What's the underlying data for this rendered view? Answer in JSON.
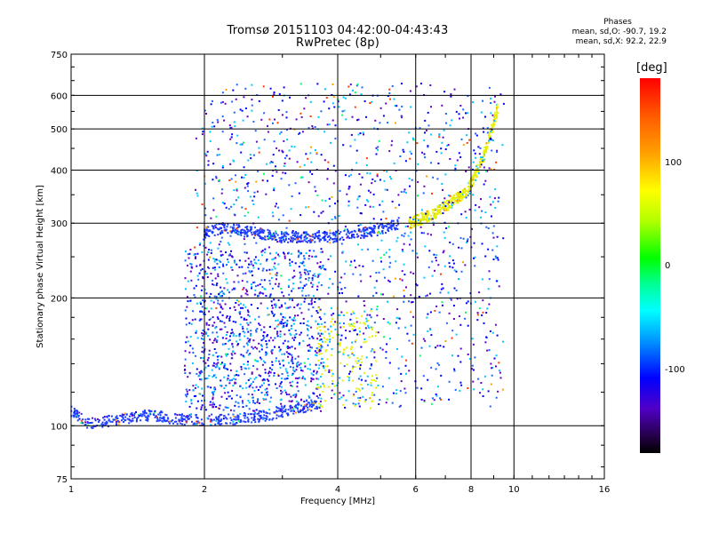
{
  "title_line1": "Tromsø 20151103 04:42:00-04:43:43",
  "title_line2": "RwPretec (8p)",
  "phases": {
    "header": "Phases",
    "line_o": "mean, sd,O: -90.7, 19.2",
    "line_x": "mean, sd,X:  92.2, 22.9"
  },
  "colorbar": {
    "title": "[deg]",
    "labels": [
      "100",
      "0",
      "-100"
    ],
    "range": [
      -180,
      180
    ]
  },
  "chart_data": {
    "type": "scatter",
    "xlabel": "Frequency [MHz]",
    "ylabel": "Stationary phase Virtual Height [km]",
    "xscale": "log",
    "yscale": "log",
    "xlim": [
      1,
      16
    ],
    "ylim": [
      75,
      750
    ],
    "xticks": [
      1,
      2,
      4,
      6,
      8,
      10,
      16
    ],
    "yticks": [
      75,
      100,
      200,
      300,
      400,
      500,
      600,
      750
    ],
    "xgrid": [
      2,
      4,
      6,
      8,
      10
    ],
    "ygrid": [
      100,
      200,
      300,
      400,
      500,
      600
    ],
    "grid": true,
    "ordinary_trace": [
      {
        "x": 1.0,
        "y": 108
      },
      {
        "x": 1.1,
        "y": 101
      },
      {
        "x": 1.3,
        "y": 104
      },
      {
        "x": 1.5,
        "y": 106
      },
      {
        "x": 1.7,
        "y": 104
      },
      {
        "x": 2.0,
        "y": 103
      },
      {
        "x": 2.4,
        "y": 104
      },
      {
        "x": 2.8,
        "y": 106
      },
      {
        "x": 3.2,
        "y": 110
      },
      {
        "x": 3.6,
        "y": 112
      },
      {
        "x": 2.0,
        "y": 285
      },
      {
        "x": 2.2,
        "y": 292
      },
      {
        "x": 2.6,
        "y": 285
      },
      {
        "x": 3.0,
        "y": 278
      },
      {
        "x": 3.5,
        "y": 278
      },
      {
        "x": 4.0,
        "y": 280
      },
      {
        "x": 4.5,
        "y": 285
      },
      {
        "x": 5.0,
        "y": 290
      },
      {
        "x": 5.5,
        "y": 300
      }
    ],
    "extraordinary_trace": [
      {
        "x": 3.6,
        "y": 112
      },
      {
        "x": 4.0,
        "y": 116
      },
      {
        "x": 4.6,
        "y": 140
      },
      {
        "x": 5.8,
        "y": 300
      },
      {
        "x": 6.6,
        "y": 315
      },
      {
        "x": 7.2,
        "y": 335
      },
      {
        "x": 7.8,
        "y": 355
      },
      {
        "x": 8.2,
        "y": 390
      },
      {
        "x": 8.6,
        "y": 440
      },
      {
        "x": 9.2,
        "y": 560
      }
    ],
    "colors": {
      "ordinary": "#1e3cff",
      "extraordinary": "#e6f000",
      "scatter_mix": [
        "#0000ff",
        "#1e64ff",
        "#00c8ff",
        "#6400c8",
        "#ffa000",
        "#ff3c00",
        "#00ff64"
      ]
    }
  }
}
